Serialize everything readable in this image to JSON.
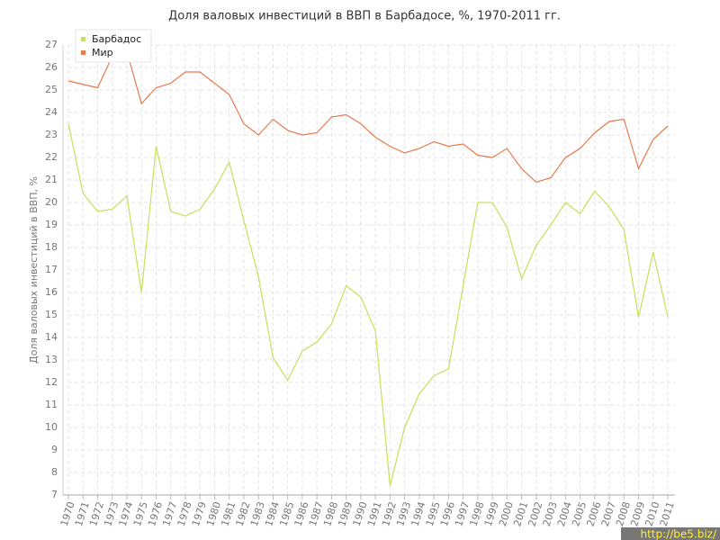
{
  "chart_data": {
    "type": "line",
    "title": "Доля валовых инвестиций в ВВП в Барбадосе, %, 1970-2011 гг.",
    "y_label": "Доля валовых инвестиций в ВВП, %",
    "x": [
      1970,
      1971,
      1972,
      1973,
      1974,
      1975,
      1976,
      1977,
      1978,
      1979,
      1980,
      1981,
      1982,
      1983,
      1984,
      1985,
      1986,
      1987,
      1988,
      1989,
      1990,
      1991,
      1992,
      1993,
      1994,
      1995,
      1996,
      1997,
      1998,
      1999,
      2000,
      2001,
      2002,
      2003,
      2004,
      2005,
      2006,
      2007,
      2008,
      2009,
      2010,
      2011
    ],
    "series": [
      {
        "name": "Барбадос",
        "color": "#c5e05a",
        "values": [
          23.5,
          20.4,
          19.6,
          19.7,
          20.3,
          16.0,
          22.5,
          19.6,
          19.4,
          19.7,
          20.6,
          21.8,
          19.2,
          16.7,
          13.1,
          12.1,
          13.4,
          13.8,
          14.6,
          16.3,
          15.8,
          14.3,
          7.4,
          10.0,
          11.5,
          12.3,
          12.6,
          16.3,
          20.0,
          20.0,
          18.9,
          16.6,
          18.1,
          19.0,
          20.0,
          19.5,
          20.5,
          19.8,
          18.8,
          14.9,
          17.8,
          14.9
        ]
      },
      {
        "name": "Мир",
        "color": "#e67a4c",
        "values": [
          25.4,
          25.25,
          25.1,
          26.5,
          26.7,
          24.4,
          25.1,
          25.3,
          25.8,
          25.8,
          25.3,
          24.8,
          23.5,
          23.0,
          23.7,
          23.2,
          23.0,
          23.1,
          23.8,
          23.9,
          23.5,
          22.9,
          22.5,
          22.2,
          22.4,
          22.7,
          22.5,
          22.6,
          22.1,
          22.0,
          22.4,
          21.5,
          20.9,
          21.1,
          22.0,
          22.4,
          23.1,
          23.6,
          23.7,
          21.5,
          22.8,
          23.4
        ]
      }
    ],
    "xlim": [
      1970,
      2011
    ],
    "ylim": [
      7,
      27
    ],
    "yticks": [
      7,
      8,
      9,
      10,
      11,
      12,
      13,
      14,
      15,
      16,
      17,
      18,
      19,
      20,
      21,
      22,
      23,
      24,
      25,
      26,
      27
    ],
    "grid": true,
    "legend": "top-left",
    "watermark": "http://be5.biz/"
  }
}
